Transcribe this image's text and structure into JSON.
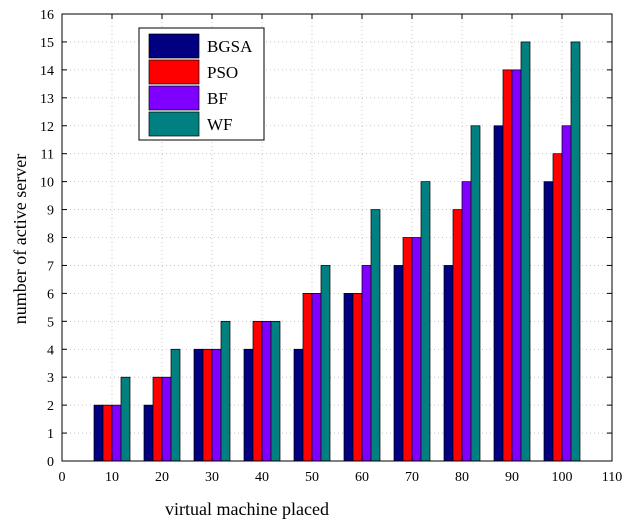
{
  "chart_data": {
    "type": "bar",
    "xlabel": "virtual machine placed",
    "ylabel": "number of active server",
    "xlim": [
      0,
      110
    ],
    "ylim": [
      0,
      16
    ],
    "xticks": [
      0,
      10,
      20,
      30,
      40,
      50,
      60,
      70,
      80,
      90,
      100,
      110
    ],
    "yticks": [
      0,
      1,
      2,
      3,
      4,
      5,
      6,
      7,
      8,
      9,
      10,
      11,
      12,
      13,
      14,
      15,
      16
    ],
    "grid": true,
    "legend": "top-left",
    "x": [
      10,
      20,
      30,
      40,
      50,
      60,
      70,
      80,
      90,
      100
    ],
    "series": [
      {
        "name": "BGSA",
        "color": "#000080",
        "values": [
          2,
          2,
          4,
          4,
          4,
          6,
          7,
          7,
          12,
          10
        ]
      },
      {
        "name": "PSO",
        "color": "#ff0000",
        "values": [
          2,
          3,
          4,
          5,
          6,
          6,
          8,
          9,
          14,
          11
        ]
      },
      {
        "name": "BF",
        "color": "#8000ff",
        "values": [
          2,
          3,
          4,
          5,
          6,
          7,
          8,
          10,
          14,
          12
        ]
      },
      {
        "name": "WF",
        "color": "#008080",
        "values": [
          3,
          4,
          5,
          5,
          7,
          9,
          10,
          12,
          15,
          15
        ]
      }
    ]
  }
}
